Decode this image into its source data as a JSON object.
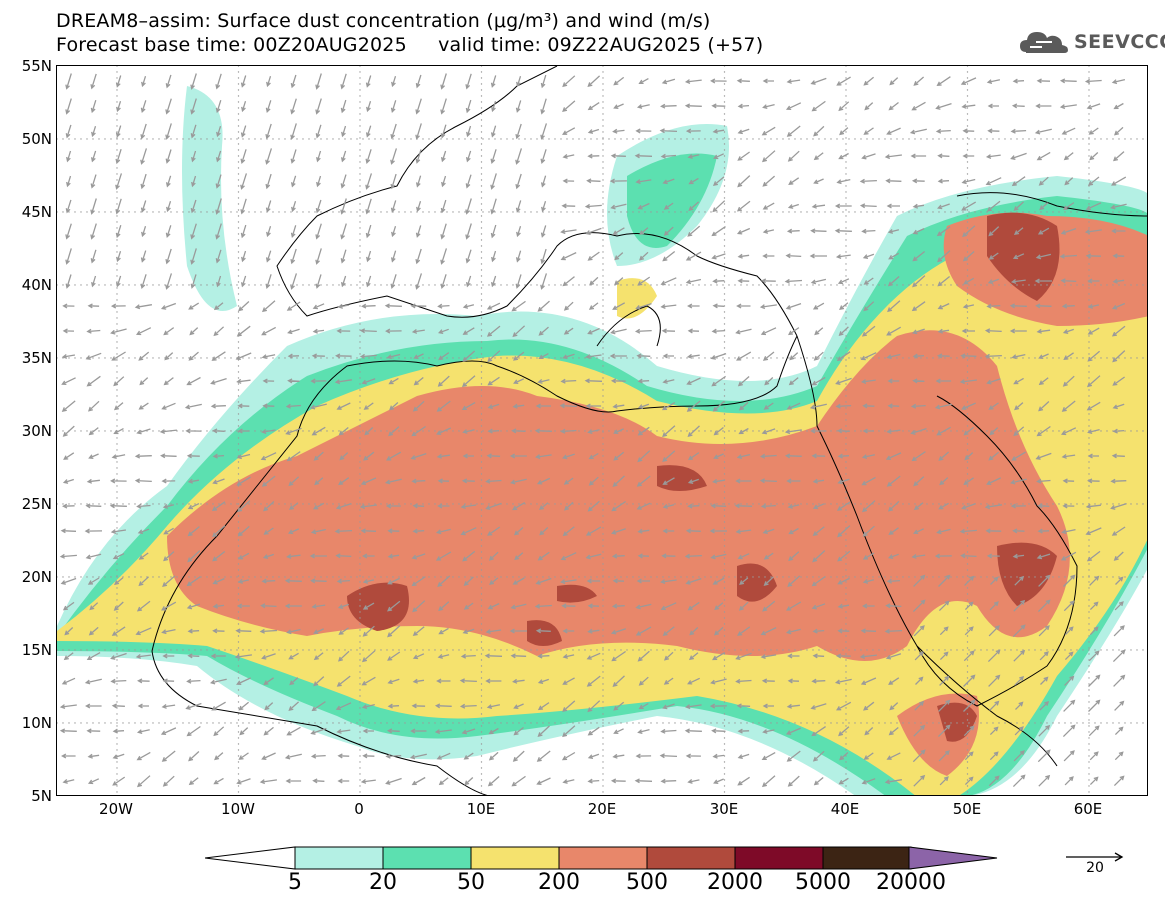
{
  "title_line1": "DREAM8–assim: Surface dust concentration (μg/m³) and wind (m/s)",
  "title_line2": "Forecast base time: 00Z20AUG2025     valid time: 09Z22AUG2025 (+57)",
  "logo_text": "SEEVCCC",
  "map": {
    "lon_range": [
      -25,
      65
    ],
    "lat_range": [
      5,
      55
    ],
    "lat_labels": [
      "55N",
      "50N",
      "45N",
      "40N",
      "35N",
      "30N",
      "25N",
      "20N",
      "15N",
      "10N",
      "5N"
    ],
    "lon_labels": [
      "20W",
      "10W",
      "0",
      "10E",
      "20E",
      "30E",
      "40E",
      "50E",
      "60E"
    ]
  },
  "colorbar": {
    "labels": [
      "5",
      "20",
      "50",
      "200",
      "500",
      "2000",
      "5000",
      "20000"
    ],
    "colors": [
      "#ffffff",
      "#b4f0e4",
      "#5ce0b0",
      "#f5e26e",
      "#e8876a",
      "#b04a3c",
      "#7e0a28",
      "#3c2414",
      "#8c64a8"
    ]
  },
  "wind_reference_label": "20"
}
